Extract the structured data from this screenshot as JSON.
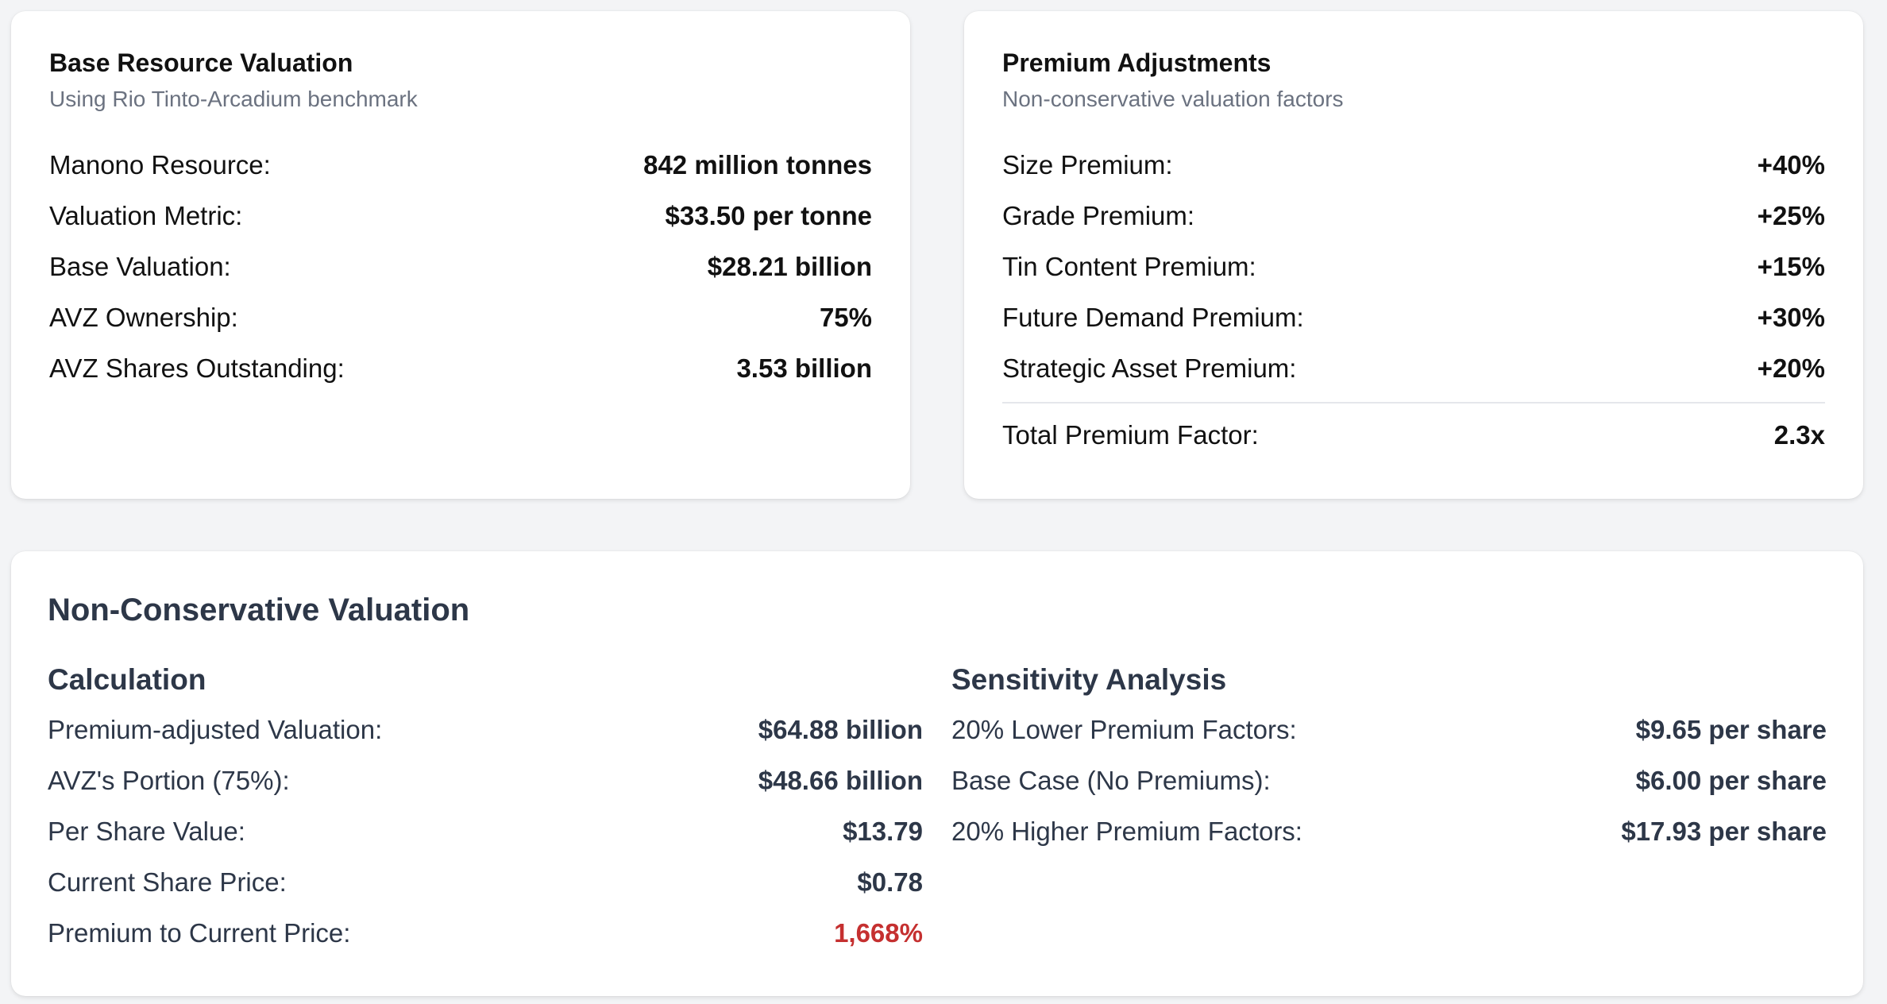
{
  "base": {
    "title": "Base Resource Valuation",
    "subtitle": "Using Rio Tinto-Arcadium benchmark",
    "rows": [
      {
        "label": "Manono Resource:",
        "value": "842 million tonnes"
      },
      {
        "label": "Valuation Metric:",
        "value": "$33.50 per tonne"
      },
      {
        "label": "Base Valuation:",
        "value": "$28.21 billion"
      },
      {
        "label": "AVZ Ownership:",
        "value": "75%"
      },
      {
        "label": "AVZ Shares Outstanding:",
        "value": "3.53 billion"
      }
    ]
  },
  "premium": {
    "title": "Premium Adjustments",
    "subtitle": "Non-conservative valuation factors",
    "rows": [
      {
        "label": "Size Premium:",
        "value": "+40%"
      },
      {
        "label": "Grade Premium:",
        "value": "+25%"
      },
      {
        "label": "Tin Content Premium:",
        "value": "+15%"
      },
      {
        "label": "Future Demand Premium:",
        "value": "+30%"
      },
      {
        "label": "Strategic Asset Premium:",
        "value": "+20%"
      }
    ],
    "total": {
      "label": "Total Premium Factor:",
      "value": "2.3x"
    }
  },
  "nonconservative": {
    "title": "Non-Conservative Valuation",
    "calculation": {
      "heading": "Calculation",
      "rows": [
        {
          "label": "Premium-adjusted Valuation:",
          "value": "$64.88 billion"
        },
        {
          "label": "AVZ's Portion (75%):",
          "value": "$48.66 billion"
        },
        {
          "label": "Per Share Value:",
          "value": "$13.79"
        },
        {
          "label": "Current Share Price:",
          "value": "$0.78"
        },
        {
          "label": "Premium to Current Price:",
          "value": "1,668%"
        }
      ]
    },
    "sensitivity": {
      "heading": "Sensitivity Analysis",
      "rows": [
        {
          "label": "20% Lower Premium Factors:",
          "value": "$9.65 per share"
        },
        {
          "label": "Base Case (No Premiums):",
          "value": "$6.00 per share"
        },
        {
          "label": "20% Higher Premium Factors:",
          "value": "$17.93 per share"
        }
      ]
    }
  },
  "colors": {
    "background": "#f3f4f6",
    "card": "#ffffff",
    "heading_dark": "#2d3748",
    "subtitle_gray": "#6b7280",
    "highlight_red": "#c53030"
  }
}
